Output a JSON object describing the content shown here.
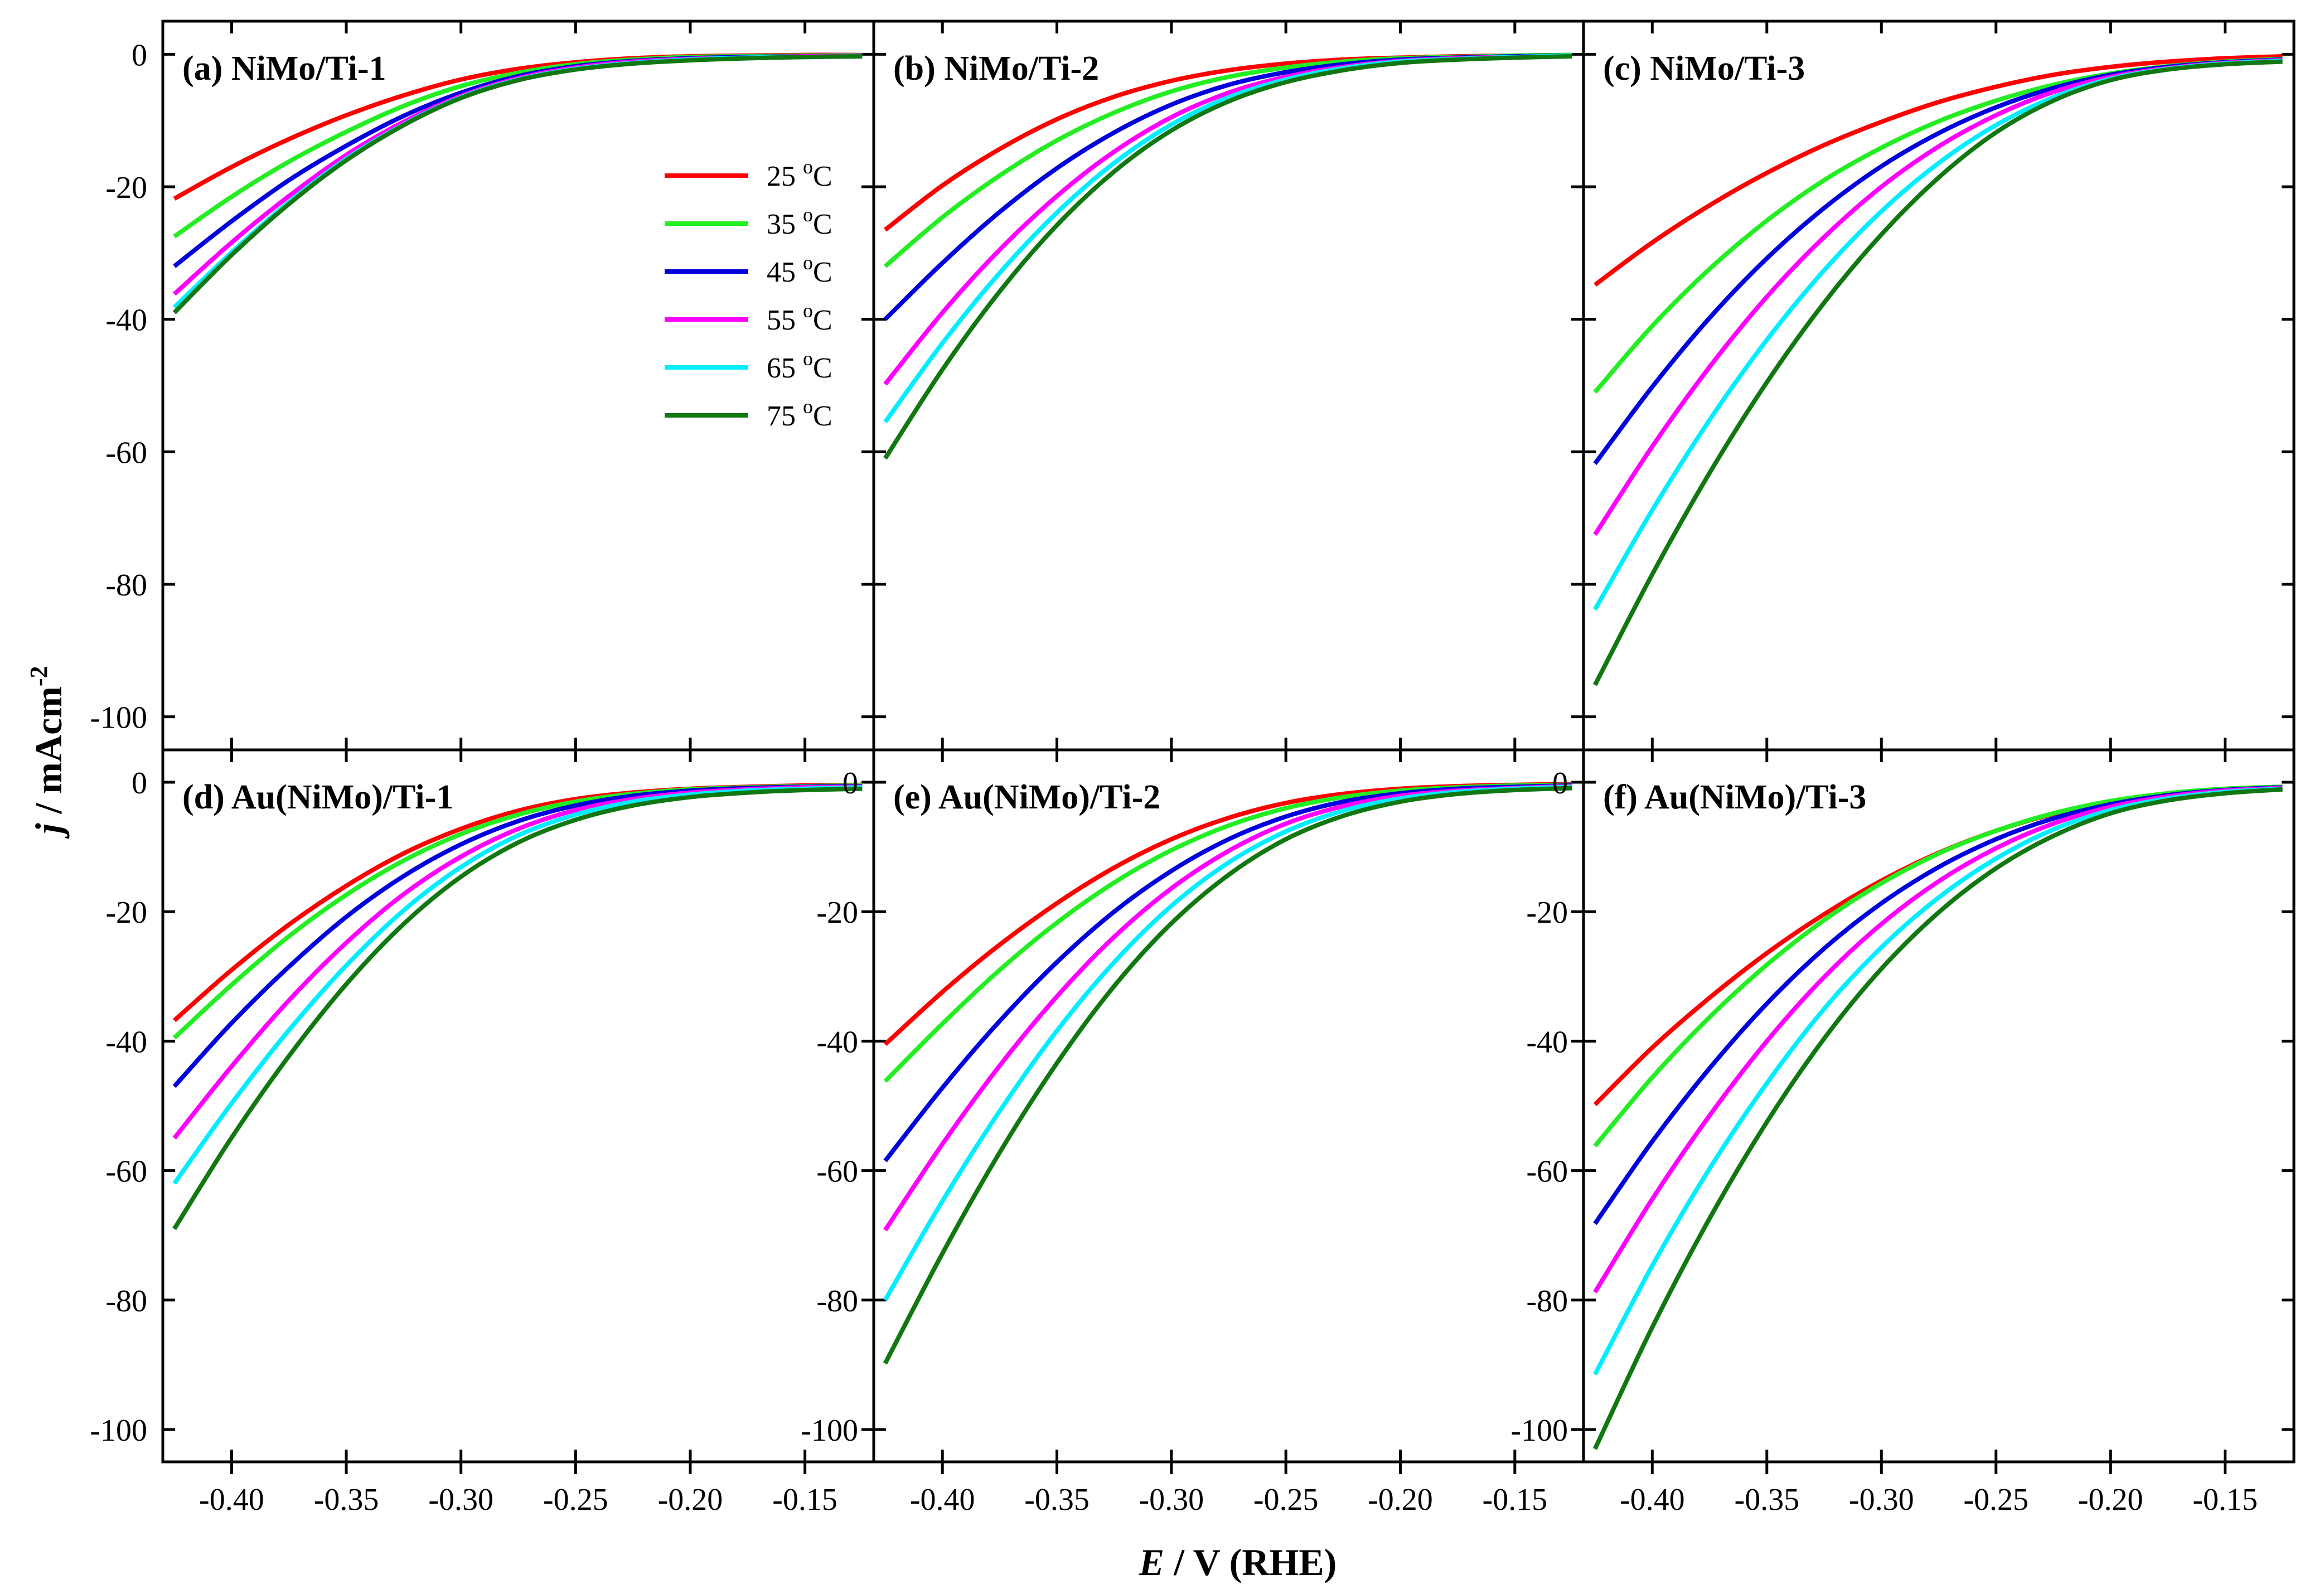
{
  "figure": {
    "xlabel_italic": "E",
    "xlabel_rest": " / V (RHE)",
    "ylabel_italic": "j",
    "ylabel_rest": " / mAcm",
    "ylabel_sup": "-2"
  },
  "legend": {
    "placement": "panel-a-right",
    "entries": [
      {
        "label": "25",
        "unit_sup": "o",
        "unit": "C",
        "color": "#ff0000"
      },
      {
        "label": "35",
        "unit_sup": "o",
        "unit": "C",
        "color": "#22ee22"
      },
      {
        "label": "45",
        "unit_sup": "o",
        "unit": "C",
        "color": "#0000dd"
      },
      {
        "label": "55",
        "unit_sup": "o",
        "unit": "C",
        "color": "#ff00ff"
      },
      {
        "label": "65",
        "unit_sup": "o",
        "unit": "C",
        "color": "#00eeff"
      },
      {
        "label": "75",
        "unit_sup": "o",
        "unit": "C",
        "color": "#117711"
      }
    ]
  },
  "chart_data": [
    {
      "type": "line",
      "panel": "a",
      "title": "(a) NiMo/Ti-1",
      "xlim": [
        -0.43,
        -0.12
      ],
      "ylim": [
        -105,
        5
      ],
      "xticks": [
        -0.4,
        -0.35,
        -0.3,
        -0.25,
        -0.2,
        -0.15
      ],
      "xtick_labels": [
        "-0.40",
        "-0.35",
        "-0.30",
        "-0.25",
        "-0.20",
        "-0.15"
      ],
      "yticks": [
        0,
        -20,
        -40,
        -60,
        -80,
        -100
      ],
      "ytick_labels": [
        "0",
        "-20",
        "-40",
        "-60",
        "-80",
        "-100"
      ],
      "x": [
        -0.425,
        -0.4,
        -0.375,
        -0.35,
        -0.325,
        -0.3,
        -0.275,
        -0.25,
        -0.225,
        -0.2,
        -0.175,
        -0.15,
        -0.125
      ],
      "series": [
        {
          "name": "25 °C",
          "values": [
            -21.8,
            -17.0,
            -12.8,
            -9.2,
            -6.2,
            -3.8,
            -2.2,
            -1.2,
            -0.6,
            -0.3,
            -0.2,
            -0.1,
            -0.1
          ]
        },
        {
          "name": "35 °C",
          "values": [
            -27.5,
            -21.5,
            -16.2,
            -11.7,
            -7.8,
            -4.8,
            -2.8,
            -1.5,
            -0.8,
            -0.4,
            -0.3,
            -0.2,
            -0.1
          ]
        },
        {
          "name": "45 °C",
          "values": [
            -32.0,
            -25.2,
            -19.0,
            -13.8,
            -9.3,
            -5.8,
            -3.3,
            -1.8,
            -1.0,
            -0.6,
            -0.4,
            -0.3,
            -0.2
          ]
        },
        {
          "name": "55 °C",
          "values": [
            -36.2,
            -28.4,
            -21.4,
            -15.2,
            -10.2,
            -6.3,
            -3.6,
            -2.0,
            -1.1,
            -0.7,
            -0.5,
            -0.3,
            -0.2
          ]
        },
        {
          "name": "65 °C",
          "values": [
            -38.2,
            -29.9,
            -22.3,
            -15.8,
            -10.6,
            -6.5,
            -3.8,
            -2.2,
            -1.3,
            -0.8,
            -0.5,
            -0.4,
            -0.3
          ]
        },
        {
          "name": "75 °C",
          "values": [
            -39.0,
            -30.3,
            -22.6,
            -16.0,
            -10.7,
            -6.6,
            -3.9,
            -2.3,
            -1.4,
            -0.9,
            -0.6,
            -0.4,
            -0.3
          ]
        }
      ]
    },
    {
      "type": "line",
      "panel": "b",
      "title": "(b) NiMo/Ti-2",
      "xlim": [
        -0.43,
        -0.12
      ],
      "ylim": [
        -105,
        5
      ],
      "xticks": [
        -0.4,
        -0.35,
        -0.3,
        -0.25,
        -0.2,
        -0.15
      ],
      "xtick_labels": [
        "-0.40",
        "-0.35",
        "-0.30",
        "-0.25",
        "-0.20",
        "-0.15"
      ],
      "yticks": [
        0,
        -20,
        -40,
        -60,
        -80,
        -100
      ],
      "ytick_labels": [
        "0",
        "-20",
        "-40",
        "-60",
        "-80",
        "-100"
      ],
      "x": [
        -0.425,
        -0.4,
        -0.375,
        -0.35,
        -0.325,
        -0.3,
        -0.275,
        -0.25,
        -0.225,
        -0.2,
        -0.175,
        -0.15,
        -0.125
      ],
      "series": [
        {
          "name": "25 °C",
          "values": [
            -26.5,
            -19.8,
            -14.3,
            -9.8,
            -6.4,
            -4.0,
            -2.4,
            -1.4,
            -0.8,
            -0.5,
            -0.3,
            -0.2,
            -0.1
          ]
        },
        {
          "name": "35 °C",
          "values": [
            -32.0,
            -24.6,
            -18.3,
            -13.0,
            -8.8,
            -5.6,
            -3.4,
            -2.0,
            -1.1,
            -0.6,
            -0.4,
            -0.2,
            -0.1
          ]
        },
        {
          "name": "45 °C",
          "values": [
            -40.0,
            -31.5,
            -23.8,
            -17.2,
            -11.8,
            -7.6,
            -4.6,
            -2.7,
            -1.5,
            -0.8,
            -0.5,
            -0.3,
            -0.2
          ]
        },
        {
          "name": "55 °C",
          "values": [
            -49.8,
            -39.0,
            -29.5,
            -21.4,
            -14.7,
            -9.5,
            -5.8,
            -3.4,
            -1.9,
            -1.0,
            -0.6,
            -0.4,
            -0.2
          ]
        },
        {
          "name": "65 °C",
          "values": [
            -55.5,
            -43.6,
            -33.0,
            -23.9,
            -16.4,
            -10.6,
            -6.5,
            -3.8,
            -2.1,
            -1.1,
            -0.7,
            -0.4,
            -0.2
          ]
        },
        {
          "name": "75 °C",
          "values": [
            -61.0,
            -47.6,
            -35.8,
            -25.8,
            -17.7,
            -11.5,
            -7.1,
            -4.2,
            -2.4,
            -1.3,
            -0.8,
            -0.5,
            -0.3
          ]
        }
      ]
    },
    {
      "type": "line",
      "panel": "c",
      "title": "(c) NiMo/Ti-3",
      "xlim": [
        -0.43,
        -0.12
      ],
      "ylim": [
        -105,
        5
      ],
      "xticks": [
        -0.4,
        -0.35,
        -0.3,
        -0.25,
        -0.2,
        -0.15
      ],
      "xtick_labels": [
        "-0.40",
        "-0.35",
        "-0.30",
        "-0.25",
        "-0.20",
        "-0.15"
      ],
      "yticks": [
        0,
        -20,
        -40,
        -60,
        -80,
        -100
      ],
      "ytick_labels": [
        "0",
        "-20",
        "-40",
        "-60",
        "-80",
        "-100"
      ],
      "x": [
        -0.425,
        -0.4,
        -0.375,
        -0.35,
        -0.325,
        -0.3,
        -0.275,
        -0.25,
        -0.225,
        -0.2,
        -0.175,
        -0.15,
        -0.125
      ],
      "series": [
        {
          "name": "25 °C",
          "values": [
            -34.8,
            -28.4,
            -22.8,
            -17.9,
            -13.7,
            -10.2,
            -7.2,
            -4.9,
            -3.1,
            -1.9,
            -1.1,
            -0.6,
            -0.3
          ]
        },
        {
          "name": "35 °C",
          "values": [
            -51.0,
            -41.0,
            -32.4,
            -25.1,
            -19.0,
            -14.1,
            -10.1,
            -7.0,
            -4.6,
            -2.9,
            -1.8,
            -1.1,
            -0.7
          ]
        },
        {
          "name": "45 °C",
          "values": [
            -61.8,
            -50.2,
            -39.8,
            -30.8,
            -23.2,
            -16.9,
            -11.9,
            -8.0,
            -5.1,
            -3.1,
            -1.9,
            -1.2,
            -0.8
          ]
        },
        {
          "name": "55 °C",
          "values": [
            -72.5,
            -59.2,
            -47.2,
            -36.6,
            -27.6,
            -20.0,
            -13.9,
            -9.2,
            -5.7,
            -3.4,
            -2.1,
            -1.3,
            -0.9
          ]
        },
        {
          "name": "65 °C",
          "values": [
            -83.8,
            -68.8,
            -55.2,
            -43.1,
            -32.6,
            -23.7,
            -16.4,
            -10.7,
            -6.5,
            -3.7,
            -2.2,
            -1.4,
            -1.0
          ]
        },
        {
          "name": "75 °C",
          "values": [
            -95.2,
            -78.5,
            -63.2,
            -49.5,
            -37.5,
            -27.2,
            -18.6,
            -11.8,
            -7.0,
            -3.9,
            -2.3,
            -1.5,
            -1.1
          ]
        }
      ]
    },
    {
      "type": "line",
      "panel": "d",
      "title": "(d) Au(NiMo)/Ti-1",
      "xlim": [
        -0.43,
        -0.12
      ],
      "ylim": [
        -105,
        5
      ],
      "xticks": [
        -0.4,
        -0.35,
        -0.3,
        -0.25,
        -0.2,
        -0.15
      ],
      "xtick_labels": [
        "-0.40",
        "-0.35",
        "-0.30",
        "-0.25",
        "-0.20",
        "-0.15"
      ],
      "yticks": [
        0,
        -20,
        -40,
        -60,
        -80,
        -100
      ],
      "ytick_labels": [
        "0",
        "-20",
        "-40",
        "-60",
        "-80",
        "-100"
      ],
      "x": [
        -0.425,
        -0.4,
        -0.375,
        -0.35,
        -0.325,
        -0.3,
        -0.275,
        -0.25,
        -0.225,
        -0.2,
        -0.175,
        -0.15,
        -0.125
      ],
      "series": [
        {
          "name": "25 °C",
          "values": [
            -36.8,
            -29.0,
            -22.0,
            -16.0,
            -11.0,
            -7.2,
            -4.4,
            -2.6,
            -1.6,
            -1.0,
            -0.7,
            -0.5,
            -0.4
          ]
        },
        {
          "name": "35 °C",
          "values": [
            -39.5,
            -31.3,
            -23.8,
            -17.4,
            -12.1,
            -8.0,
            -5.0,
            -3.0,
            -1.8,
            -1.1,
            -0.8,
            -0.6,
            -0.5
          ]
        },
        {
          "name": "45 °C",
          "values": [
            -47.0,
            -37.2,
            -28.5,
            -20.8,
            -14.5,
            -9.6,
            -6.0,
            -3.6,
            -2.1,
            -1.3,
            -0.9,
            -0.7,
            -0.6
          ]
        },
        {
          "name": "55 °C",
          "values": [
            -55.0,
            -43.9,
            -33.7,
            -24.8,
            -17.3,
            -11.5,
            -7.2,
            -4.3,
            -2.6,
            -1.6,
            -1.1,
            -0.8,
            -0.7
          ]
        },
        {
          "name": "65 °C",
          "values": [
            -62.0,
            -49.6,
            -38.3,
            -28.3,
            -19.8,
            -13.1,
            -8.2,
            -5.0,
            -3.0,
            -1.9,
            -1.3,
            -1.0,
            -0.8
          ]
        },
        {
          "name": "75 °C",
          "values": [
            -69.0,
            -54.9,
            -42.3,
            -31.2,
            -21.9,
            -14.6,
            -9.3,
            -5.8,
            -3.6,
            -2.3,
            -1.6,
            -1.2,
            -1.0
          ]
        }
      ]
    },
    {
      "type": "line",
      "panel": "e",
      "title": "(e) Au(NiMo)/Ti-2",
      "xlim": [
        -0.43,
        -0.12
      ],
      "ylim": [
        -105,
        5
      ],
      "xticks": [
        -0.4,
        -0.35,
        -0.3,
        -0.25,
        -0.2,
        -0.15
      ],
      "xtick_labels": [
        "-0.40",
        "-0.35",
        "-0.30",
        "-0.25",
        "-0.20",
        "-0.15"
      ],
      "yticks": [
        0,
        -20,
        -40,
        -60,
        -80,
        -100
      ],
      "ytick_labels": [
        "0",
        "-20",
        "-40",
        "-60",
        "-80",
        "-100"
      ],
      "x": [
        -0.425,
        -0.4,
        -0.375,
        -0.35,
        -0.325,
        -0.3,
        -0.275,
        -0.25,
        -0.225,
        -0.2,
        -0.175,
        -0.15,
        -0.125
      ],
      "series": [
        {
          "name": "25 °C",
          "values": [
            -40.5,
            -32.4,
            -25.1,
            -18.7,
            -13.2,
            -8.8,
            -5.5,
            -3.2,
            -1.8,
            -1.0,
            -0.6,
            -0.4,
            -0.3
          ]
        },
        {
          "name": "35 °C",
          "values": [
            -46.2,
            -37.3,
            -29.0,
            -21.7,
            -15.5,
            -10.5,
            -6.7,
            -4.0,
            -2.3,
            -1.3,
            -0.8,
            -0.5,
            -0.4
          ]
        },
        {
          "name": "45 °C",
          "values": [
            -58.5,
            -47.2,
            -36.9,
            -27.8,
            -20.0,
            -13.7,
            -8.8,
            -5.3,
            -3.0,
            -1.7,
            -1.0,
            -0.7,
            -0.5
          ]
        },
        {
          "name": "55 °C",
          "values": [
            -69.2,
            -55.9,
            -43.8,
            -33.1,
            -23.9,
            -16.4,
            -10.6,
            -6.4,
            -3.7,
            -2.1,
            -1.3,
            -0.9,
            -0.6
          ]
        },
        {
          "name": "65 °C",
          "values": [
            -80.0,
            -64.7,
            -50.8,
            -38.4,
            -27.8,
            -19.1,
            -12.4,
            -7.6,
            -4.4,
            -2.5,
            -1.5,
            -1.0,
            -0.7
          ]
        },
        {
          "name": "75 °C",
          "values": [
            -89.8,
            -72.8,
            -57.2,
            -43.4,
            -31.5,
            -21.8,
            -14.3,
            -8.8,
            -5.2,
            -3.0,
            -1.8,
            -1.2,
            -0.9
          ]
        }
      ]
    },
    {
      "type": "line",
      "panel": "f",
      "title": "(f) Au(NiMo)/Ti-3",
      "xlim": [
        -0.43,
        -0.12
      ],
      "ylim": [
        -105,
        5
      ],
      "xticks": [
        -0.4,
        -0.35,
        -0.3,
        -0.25,
        -0.2,
        -0.15
      ],
      "xtick_labels": [
        "-0.40",
        "-0.35",
        "-0.30",
        "-0.25",
        "-0.20",
        "-0.15"
      ],
      "yticks": [
        0,
        -20,
        -40,
        -60,
        -80,
        -100
      ],
      "ytick_labels": [
        "0",
        "-20",
        "-40",
        "-60",
        "-80",
        "-100"
      ],
      "x": [
        -0.425,
        -0.4,
        -0.375,
        -0.35,
        -0.325,
        -0.3,
        -0.275,
        -0.25,
        -0.225,
        -0.2,
        -0.175,
        -0.15,
        -0.125
      ],
      "series": [
        {
          "name": "25 °C",
          "values": [
            -49.8,
            -41.0,
            -33.3,
            -26.4,
            -20.4,
            -15.2,
            -10.9,
            -7.5,
            -4.9,
            -3.0,
            -1.8,
            -1.1,
            -0.7
          ]
        },
        {
          "name": "35 °C",
          "values": [
            -56.2,
            -45.6,
            -36.3,
            -28.2,
            -21.3,
            -15.6,
            -11.0,
            -7.5,
            -4.8,
            -2.9,
            -1.7,
            -1.0,
            -0.7
          ]
        },
        {
          "name": "45 °C",
          "values": [
            -68.2,
            -55.5,
            -44.2,
            -34.2,
            -25.7,
            -18.7,
            -13.1,
            -8.8,
            -5.6,
            -3.4,
            -2.0,
            -1.2,
            -0.8
          ]
        },
        {
          "name": "55 °C",
          "values": [
            -78.8,
            -64.4,
            -51.5,
            -40.0,
            -30.1,
            -21.9,
            -15.3,
            -10.2,
            -6.4,
            -3.8,
            -2.2,
            -1.3,
            -0.9
          ]
        },
        {
          "name": "65 °C",
          "values": [
            -91.5,
            -74.7,
            -59.7,
            -46.5,
            -35.0,
            -25.5,
            -17.8,
            -11.8,
            -7.3,
            -4.3,
            -2.5,
            -1.5,
            -1.0
          ]
        },
        {
          "name": "75 °C",
          "values": [
            -103.0,
            -84.2,
            -67.4,
            -52.5,
            -39.6,
            -28.8,
            -20.1,
            -13.3,
            -8.3,
            -4.8,
            -2.8,
            -1.7,
            -1.1
          ]
        }
      ]
    }
  ]
}
